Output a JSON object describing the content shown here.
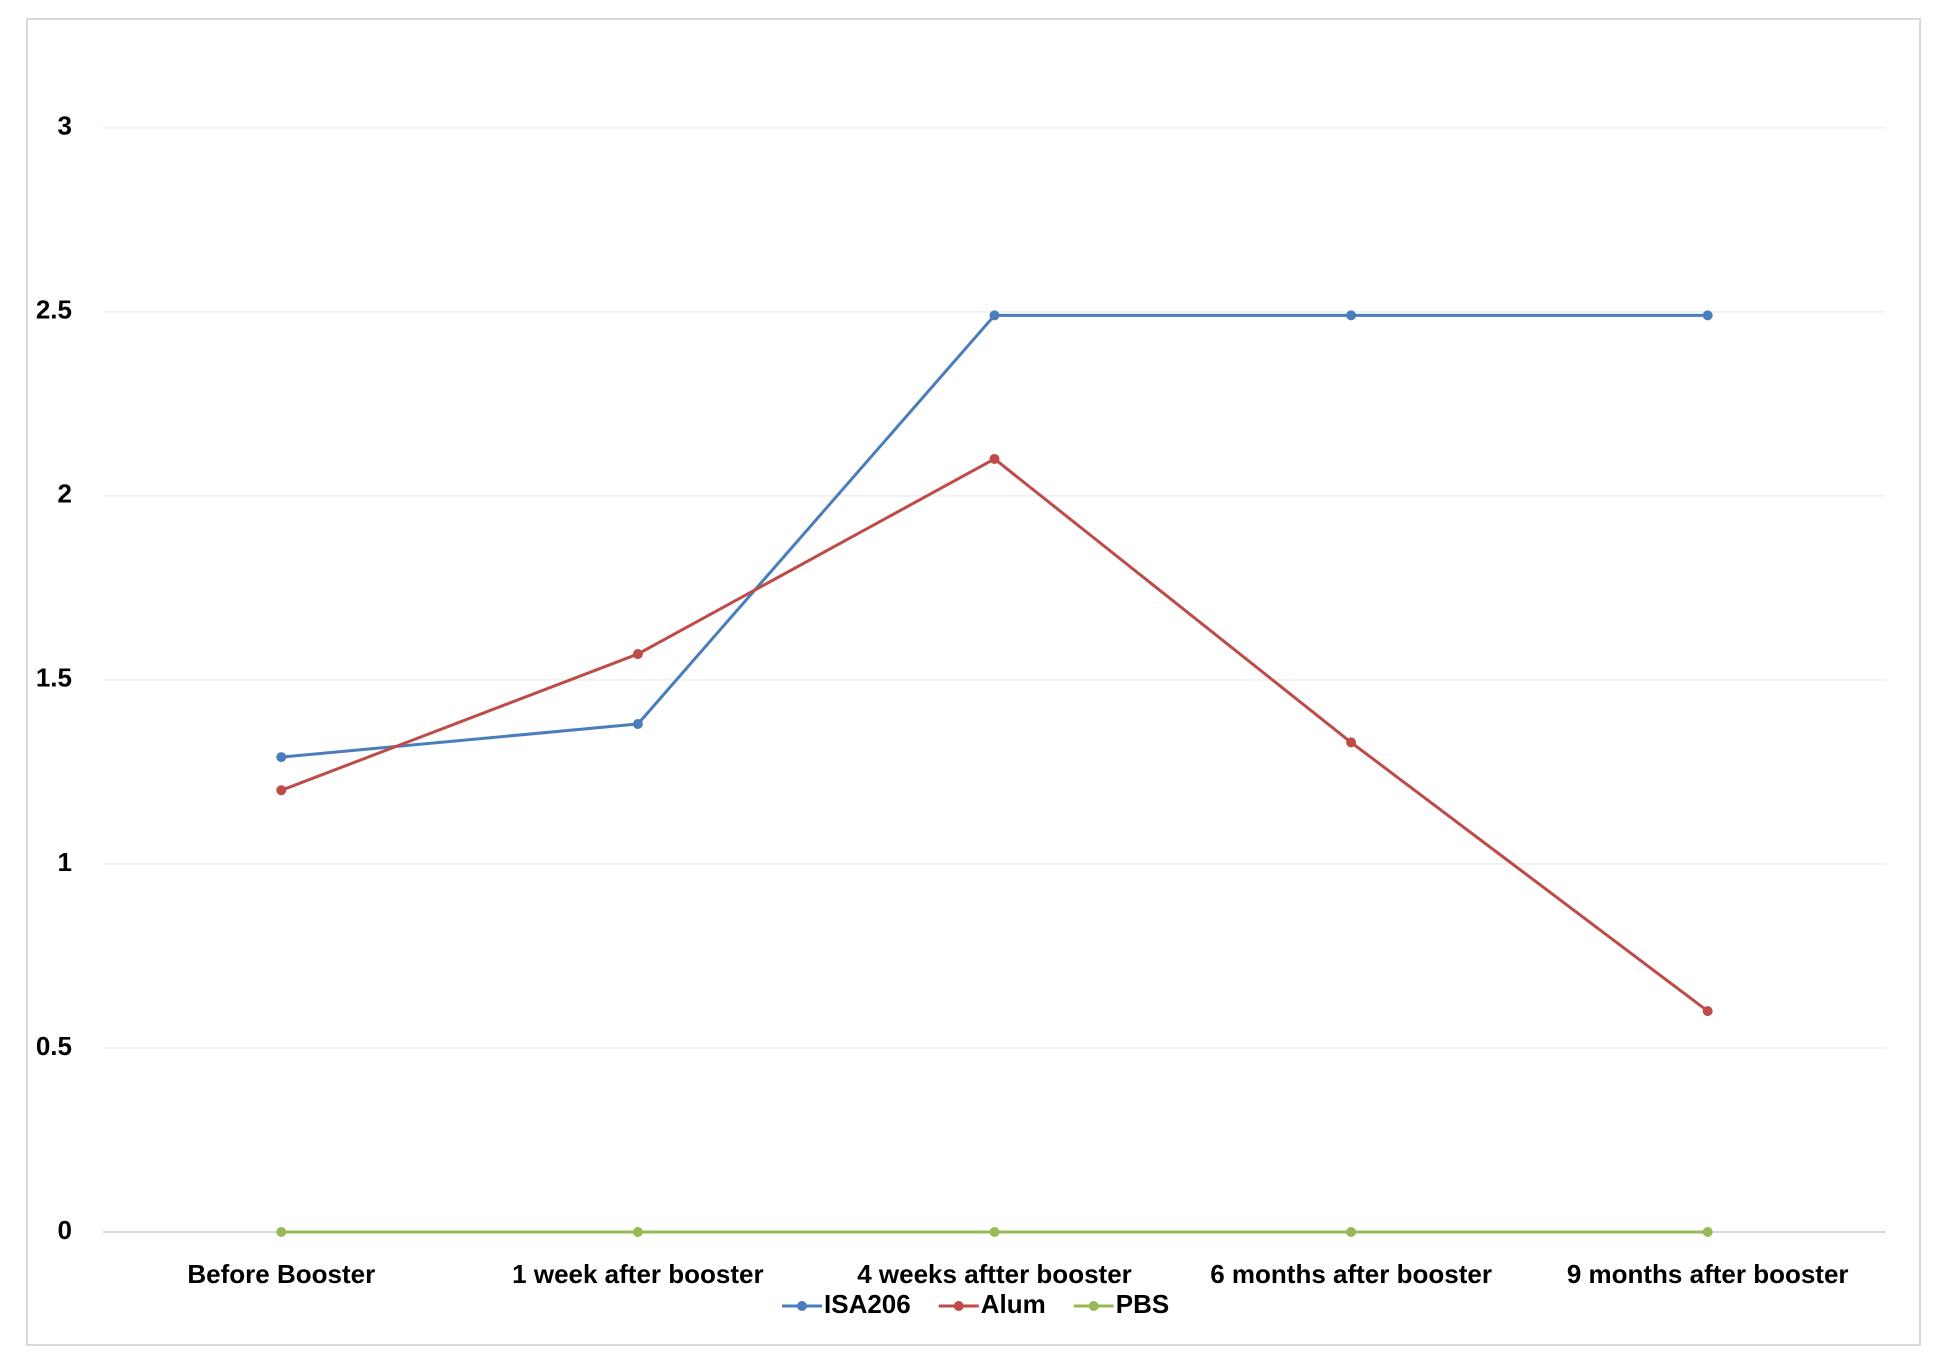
{
  "chart_data": {
    "type": "line",
    "categories": [
      "Before Booster",
      "1 week after booster",
      "4 weeks aftter booster",
      "6 months after booster",
      "9 months after booster"
    ],
    "series": [
      {
        "name": "ISA206",
        "color": "#4a7ebb",
        "values": [
          1.29,
          1.38,
          2.49,
          2.49,
          2.49
        ]
      },
      {
        "name": "Alum",
        "color": "#be4b48",
        "values": [
          1.2,
          1.57,
          2.1,
          1.33,
          0.6
        ]
      },
      {
        "name": "PBS",
        "color": "#98b954",
        "values": [
          0,
          0,
          0,
          0,
          0
        ]
      }
    ],
    "ylim": [
      0,
      3.2
    ],
    "yticks": [
      0,
      0.5,
      1,
      1.5,
      2,
      2.5,
      3
    ],
    "grid": true,
    "legend": "bottom"
  }
}
